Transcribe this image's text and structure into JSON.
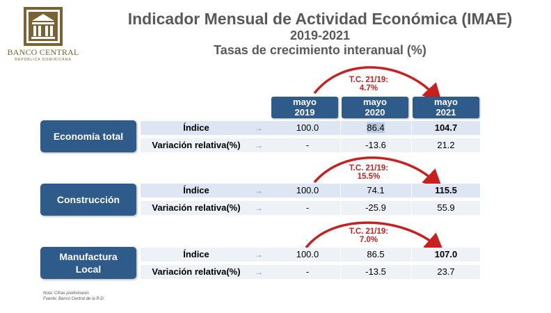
{
  "header": {
    "title": "Indicador Mensual de Actividad Económica (IMAE)",
    "period": "2019-2021",
    "subtitle": "Tasas de crecimiento interanual (%)"
  },
  "logo": {
    "name": "BANCO CENTRAL",
    "sub": "REPÚBLICA DOMINICANA",
    "icon": "building-columns-icon",
    "color": "#7a6330"
  },
  "columns": [
    {
      "month": "mayo",
      "year": "2019"
    },
    {
      "month": "mayo",
      "year": "2020"
    },
    {
      "month": "mayo",
      "year": "2021"
    }
  ],
  "sections": [
    {
      "name": "Economía total",
      "index_label": "Índice",
      "variation_label": "Variación relativa(%)",
      "index": [
        "100.0",
        "86.4",
        "104.7"
      ],
      "variation": [
        "-",
        "-13.6",
        "21.2"
      ],
      "tc": "T.C. 21/19:",
      "tc_value": "4.7%"
    },
    {
      "name": "Construcción",
      "index_label": "Índice",
      "variation_label": "Variación relativa(%)",
      "index": [
        "100.0",
        "74.1",
        "115.5"
      ],
      "variation": [
        "-",
        "-25.9",
        "55.9"
      ],
      "tc": "T.C. 21/19:",
      "tc_value": "15.5%"
    },
    {
      "name_line1": "Manufactura",
      "name_line2": "Local",
      "index_label": "Índice",
      "variation_label": "Variación relativa(%)",
      "index": [
        "100.0",
        "86.5",
        "107.0"
      ],
      "variation": [
        "-",
        "-13.5",
        "23.7"
      ],
      "tc": "T.C. 21/19:",
      "tc_value": "7.0%"
    }
  ],
  "notes": {
    "line1": "Nota: Cifras preliminares",
    "line2": "Fuente: Banco Central de la R.D."
  },
  "colors": {
    "box": "#2e5b89",
    "accent_red": "#c8201e",
    "title": "#595959",
    "band": "#dde6f2"
  }
}
